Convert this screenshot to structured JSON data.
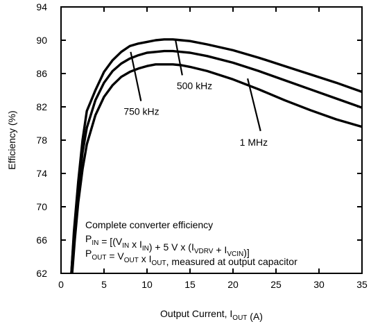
{
  "chart_data": {
    "type": "line",
    "title": "",
    "xlabel": "Output Current, I",
    "xlabel_sub": "OUT",
    "xlabel_unit": " (A)",
    "ylabel": "Efficiency (%)",
    "xlim": [
      0,
      35
    ],
    "ylim": [
      62,
      94
    ],
    "xticks": [
      0,
      5,
      10,
      15,
      20,
      25,
      30,
      35
    ],
    "yticks": [
      62,
      66,
      70,
      74,
      78,
      82,
      86,
      90,
      94
    ],
    "grid": false,
    "series": [
      {
        "name": "500 kHz",
        "x": [
          1.2,
          1.5,
          2,
          2.5,
          3,
          4,
          5,
          6,
          7,
          8,
          9,
          10,
          11,
          12,
          13,
          14,
          15,
          17,
          20,
          23,
          26,
          29,
          32,
          35
        ],
        "y": [
          62,
          67,
          73,
          78,
          81.5,
          84,
          86.2,
          87.6,
          88.6,
          89.3,
          89.6,
          89.8,
          90,
          90.1,
          90.1,
          90,
          89.9,
          89.5,
          88.8,
          87.9,
          86.9,
          85.9,
          84.9,
          83.8
        ]
      },
      {
        "name": "750 kHz",
        "x": [
          1.2,
          1.5,
          2,
          2.5,
          3,
          4,
          5,
          6,
          7,
          8,
          9,
          10,
          11,
          12,
          13,
          14,
          15,
          17,
          20,
          23,
          26,
          29,
          32,
          35
        ],
        "y": [
          62,
          66.5,
          72,
          76.5,
          79.5,
          82.8,
          84.9,
          86.3,
          87.2,
          87.8,
          88.2,
          88.5,
          88.6,
          88.7,
          88.7,
          88.6,
          88.5,
          88.1,
          87.3,
          86.3,
          85.2,
          84.1,
          83,
          81.9
        ]
      },
      {
        "name": "1 MHz",
        "x": [
          1.3,
          1.6,
          2,
          2.5,
          3,
          4,
          5,
          6,
          7,
          8,
          9,
          10,
          11,
          12,
          13,
          14,
          15,
          17,
          20,
          23,
          26,
          29,
          32,
          35
        ],
        "y": [
          62,
          66,
          70.5,
          74.5,
          77.5,
          81,
          83.2,
          84.6,
          85.6,
          86.2,
          86.6,
          86.9,
          87.1,
          87.1,
          87.1,
          87,
          86.8,
          86.3,
          85.3,
          84.1,
          82.8,
          81.6,
          80.5,
          79.6
        ]
      }
    ],
    "series_labels": [
      {
        "text": "500 kHz",
        "leader_from": [
          13.3,
          90.1
        ],
        "leader_to": [
          14.1,
          85.8
        ]
      },
      {
        "text": "750 kHz",
        "leader_from": [
          8.1,
          88.6
        ],
        "leader_to": [
          9.3,
          82.7
        ]
      },
      {
        "text": "1 MHz",
        "leader_from": [
          21.7,
          85.4
        ],
        "leader_to": [
          23.2,
          79.1
        ]
      }
    ],
    "annotations": {
      "line1": "Complete converter efficiency",
      "line2": [
        {
          "t": "P"
        },
        {
          "t": "IN",
          "sub": true
        },
        {
          "t": " = [(V"
        },
        {
          "t": "IN",
          "sub": true
        },
        {
          "t": " x I"
        },
        {
          "t": "IN",
          "sub": true
        },
        {
          "t": ") + 5 V x (I"
        },
        {
          "t": "VDRV",
          "sub": true
        },
        {
          "t": " + I"
        },
        {
          "t": "VCIN",
          "sub": true
        },
        {
          "t": ")]"
        }
      ],
      "line3": [
        {
          "t": "P"
        },
        {
          "t": "OUT",
          "sub": true
        },
        {
          "t": " = V"
        },
        {
          "t": "OUT",
          "sub": true
        },
        {
          "t": " x I"
        },
        {
          "t": "OUT",
          "sub": true
        },
        {
          "t": ", measured at output capacitor"
        }
      ]
    }
  }
}
